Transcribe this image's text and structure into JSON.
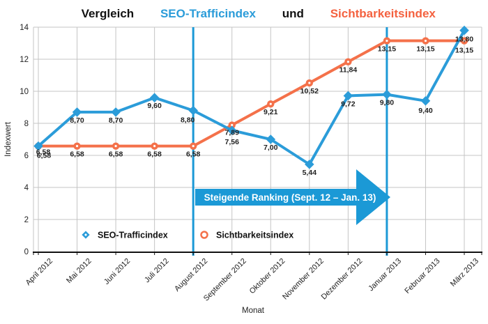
{
  "title": {
    "prefix": "Vergleich ",
    "series1": "SEO-Trafficindex",
    "conjunction": " und ",
    "series2": "Sichtbarkeitsindex"
  },
  "colors": {
    "background": "#FFFFFF",
    "title_black": "#111111",
    "title_blue": "#2B9CD9",
    "title_orange": "#F4613F",
    "series_blue": "#2B9CD9",
    "series_orange": "#F4714A",
    "accent_blue": "#1B99D6",
    "grid": "#C4C4C4",
    "axis": "#111111",
    "text": "#222222",
    "legend_text": "#111111",
    "annotation_text": "#FFFFFF"
  },
  "chart_data": {
    "type": "line",
    "title": "Vergleich SEO-Trafficindex und Sichtbarkeitsindex",
    "categories": [
      "April 2012",
      "Mai 2012",
      "Juni 2012",
      "Juli 2012",
      "August 2012",
      "September 2012",
      "Oktober 2012",
      "November 2012",
      "Dezember 2012",
      "Januar 2013",
      "Februar 2013",
      "März 2013"
    ],
    "series": [
      {
        "name": "SEO-Trafficindex",
        "marker": "diamond",
        "color_key": "series_blue",
        "values": [
          6.58,
          8.7,
          8.7,
          9.6,
          8.8,
          7.56,
          7.0,
          5.44,
          9.72,
          9.8,
          9.4,
          13.8
        ]
      },
      {
        "name": "Sichtbarkeitsindex",
        "marker": "circle",
        "color_key": "series_orange",
        "values": [
          6.58,
          6.58,
          6.58,
          6.58,
          6.58,
          7.89,
          9.21,
          10.52,
          11.84,
          13.15,
          13.15,
          13.15
        ]
      }
    ],
    "xlabel": "Monat",
    "ylabel": "Indexwert",
    "ylim": [
      0,
      14
    ],
    "ytick_step": 2,
    "yticks": [
      0,
      2,
      4,
      6,
      8,
      10,
      12,
      14
    ],
    "grid": true,
    "decimal_format": "comma",
    "legend_position": "bottom-inside",
    "vertical_markers": [
      "August 2012",
      "Januar 2013"
    ],
    "annotation": {
      "text": "Steigende Ranking (Sept. 12 – Jan. 13)",
      "shape": "right-arrow",
      "span": [
        "August 2012",
        "Januar 2013"
      ]
    }
  }
}
